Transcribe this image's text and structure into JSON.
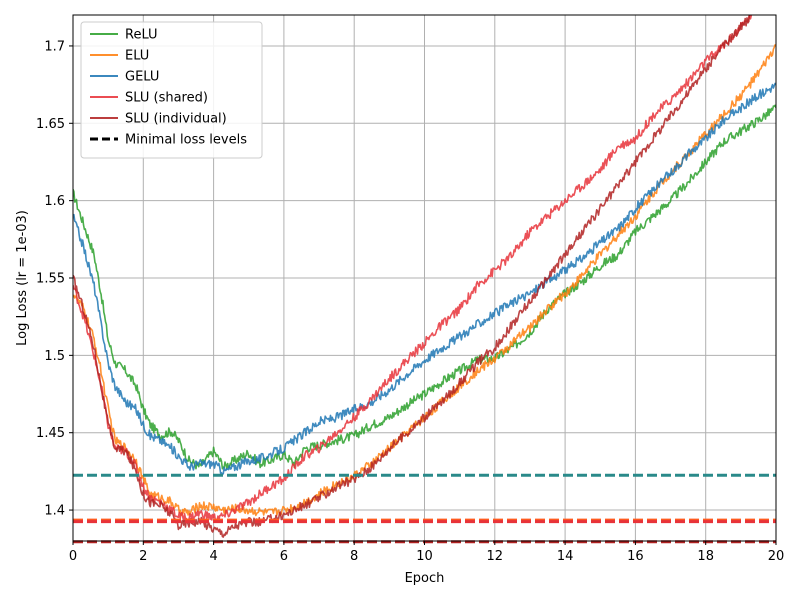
{
  "chart_data": {
    "type": "line",
    "title": "",
    "xlabel": "Epoch",
    "ylabel": "Log Loss (lr = 1e-03)",
    "xlim": [
      0,
      20
    ],
    "ylim": [
      1.38,
      1.72
    ],
    "xticks": [
      0,
      2,
      4,
      6,
      8,
      10,
      12,
      14,
      16,
      18,
      20
    ],
    "yticks": [
      1.4,
      1.45,
      1.5,
      1.55,
      1.6,
      1.65,
      1.7
    ],
    "xtick_labels": [
      "0",
      "2",
      "4",
      "6",
      "8",
      "10",
      "12",
      "14",
      "16",
      "18",
      "20"
    ],
    "ytick_labels": [
      "1.4",
      "1.45",
      "1.5",
      "1.55",
      "1.6",
      "1.65",
      "1.7"
    ],
    "grid": true,
    "legend_position": "top-left",
    "series": [
      {
        "name": "ReLU",
        "color": "#2ca02c",
        "x": [
          0,
          0.3,
          0.6,
          0.8,
          1.0,
          1.2,
          1.5,
          1.8,
          2.0,
          2.2,
          2.5,
          2.8,
          3.0,
          3.3,
          3.6,
          4.0,
          4.3,
          4.6,
          5.0,
          5.3,
          5.6,
          6.0,
          6.3,
          6.6,
          7.0,
          7.5,
          8.0,
          8.5,
          9.0,
          9.5,
          10.0,
          10.5,
          11.0,
          11.5,
          12.0,
          12.5,
          13.0,
          13.5,
          14.0,
          14.5,
          15.0,
          15.5,
          16.0,
          16.5,
          17.0,
          17.5,
          18.0,
          18.5,
          19.0,
          19.5,
          20.0
        ],
        "y": [
          1.605,
          1.585,
          1.565,
          1.54,
          1.51,
          1.495,
          1.49,
          1.48,
          1.465,
          1.455,
          1.448,
          1.451,
          1.445,
          1.432,
          1.428,
          1.438,
          1.428,
          1.432,
          1.437,
          1.43,
          1.432,
          1.436,
          1.43,
          1.44,
          1.442,
          1.445,
          1.448,
          1.455,
          1.46,
          1.468,
          1.475,
          1.483,
          1.49,
          1.497,
          1.498,
          1.505,
          1.515,
          1.53,
          1.54,
          1.548,
          1.558,
          1.565,
          1.58,
          1.59,
          1.6,
          1.612,
          1.625,
          1.638,
          1.645,
          1.652,
          1.66
        ]
      },
      {
        "name": "ELU",
        "color": "#ff7f0e",
        "x": [
          0,
          0.3,
          0.6,
          0.8,
          1.0,
          1.2,
          1.5,
          1.8,
          2.0,
          2.2,
          2.5,
          2.8,
          3.0,
          3.3,
          3.6,
          4.0,
          4.3,
          4.6,
          5.0,
          5.3,
          5.6,
          6.0,
          6.3,
          6.6,
          7.0,
          7.5,
          8.0,
          8.5,
          9.0,
          9.5,
          10.0,
          10.5,
          11.0,
          11.5,
          12.0,
          12.5,
          13.0,
          13.5,
          14.0,
          14.5,
          15.0,
          15.5,
          16.0,
          16.5,
          17.0,
          17.5,
          18.0,
          18.5,
          19.0,
          19.5,
          20.0
        ],
        "y": [
          1.54,
          1.53,
          1.51,
          1.49,
          1.465,
          1.445,
          1.44,
          1.432,
          1.42,
          1.41,
          1.408,
          1.405,
          1.4,
          1.398,
          1.403,
          1.402,
          1.4,
          1.401,
          1.4,
          1.399,
          1.398,
          1.4,
          1.402,
          1.405,
          1.41,
          1.417,
          1.422,
          1.43,
          1.44,
          1.45,
          1.46,
          1.47,
          1.48,
          1.49,
          1.498,
          1.508,
          1.518,
          1.53,
          1.54,
          1.552,
          1.565,
          1.578,
          1.59,
          1.605,
          1.618,
          1.63,
          1.643,
          1.655,
          1.668,
          1.682,
          1.7
        ]
      },
      {
        "name": "GELU",
        "color": "#1f77b4",
        "x": [
          0,
          0.3,
          0.6,
          0.8,
          1.0,
          1.2,
          1.5,
          1.8,
          2.0,
          2.2,
          2.5,
          2.8,
          3.0,
          3.3,
          3.6,
          4.0,
          4.3,
          4.6,
          5.0,
          5.3,
          5.6,
          6.0,
          6.3,
          6.6,
          7.0,
          7.5,
          8.0,
          8.5,
          9.0,
          9.5,
          10.0,
          10.5,
          11.0,
          11.5,
          12.0,
          12.5,
          13.0,
          13.5,
          14.0,
          14.5,
          15.0,
          15.5,
          16.0,
          16.5,
          17.0,
          17.5,
          18.0,
          18.5,
          19.0,
          19.5,
          20.0
        ],
        "y": [
          1.59,
          1.57,
          1.545,
          1.52,
          1.495,
          1.48,
          1.47,
          1.465,
          1.455,
          1.448,
          1.445,
          1.44,
          1.435,
          1.428,
          1.43,
          1.43,
          1.425,
          1.428,
          1.432,
          1.433,
          1.436,
          1.44,
          1.445,
          1.45,
          1.457,
          1.46,
          1.465,
          1.47,
          1.478,
          1.488,
          1.497,
          1.505,
          1.512,
          1.52,
          1.527,
          1.534,
          1.54,
          1.548,
          1.555,
          1.563,
          1.573,
          1.582,
          1.595,
          1.607,
          1.618,
          1.63,
          1.64,
          1.652,
          1.66,
          1.668,
          1.675
        ]
      },
      {
        "name": "SLU (shared)",
        "color": "#e8333a",
        "x": [
          0,
          0.3,
          0.6,
          0.8,
          1.0,
          1.2,
          1.5,
          1.8,
          2.0,
          2.2,
          2.5,
          2.8,
          3.0,
          3.3,
          3.6,
          4.0,
          4.3,
          4.6,
          5.0,
          5.3,
          5.6,
          6.0,
          6.3,
          6.6,
          7.0,
          7.5,
          8.0,
          8.5,
          9.0,
          9.5,
          10.0,
          10.5,
          11.0,
          11.5,
          12.0,
          12.5,
          13.0,
          13.5,
          14.0,
          14.5,
          15.0,
          15.5,
          16.0,
          16.5,
          17.0,
          17.5,
          18.0,
          18.5,
          19.0,
          19.3
        ],
        "y": [
          1.545,
          1.525,
          1.5,
          1.48,
          1.455,
          1.44,
          1.438,
          1.428,
          1.415,
          1.408,
          1.405,
          1.4,
          1.396,
          1.395,
          1.398,
          1.395,
          1.396,
          1.4,
          1.405,
          1.41,
          1.415,
          1.42,
          1.428,
          1.435,
          1.44,
          1.45,
          1.46,
          1.472,
          1.485,
          1.497,
          1.508,
          1.52,
          1.53,
          1.545,
          1.555,
          1.565,
          1.58,
          1.59,
          1.6,
          1.61,
          1.62,
          1.635,
          1.64,
          1.655,
          1.665,
          1.677,
          1.69,
          1.7,
          1.712,
          1.72
        ]
      },
      {
        "name": "SLU (individual)",
        "color": "#b22222",
        "x": [
          0,
          0.3,
          0.6,
          0.8,
          1.0,
          1.2,
          1.5,
          1.8,
          2.0,
          2.2,
          2.5,
          2.8,
          3.0,
          3.3,
          3.6,
          4.0,
          4.3,
          4.6,
          5.0,
          5.3,
          5.6,
          6.0,
          6.3,
          6.6,
          7.0,
          7.5,
          8.0,
          8.5,
          9.0,
          9.5,
          10.0,
          10.5,
          11.0,
          11.5,
          12.0,
          12.5,
          13.0,
          13.5,
          14.0,
          14.5,
          15.0,
          15.5,
          16.0,
          16.5,
          17.0,
          17.5,
          18.0,
          18.5,
          19.0,
          19.3
        ],
        "y": [
          1.55,
          1.53,
          1.505,
          1.48,
          1.455,
          1.44,
          1.438,
          1.425,
          1.41,
          1.405,
          1.403,
          1.397,
          1.39,
          1.392,
          1.393,
          1.388,
          1.385,
          1.39,
          1.392,
          1.392,
          1.394,
          1.397,
          1.4,
          1.403,
          1.408,
          1.415,
          1.42,
          1.428,
          1.44,
          1.45,
          1.46,
          1.47,
          1.482,
          1.495,
          1.505,
          1.52,
          1.535,
          1.55,
          1.565,
          1.58,
          1.595,
          1.61,
          1.625,
          1.64,
          1.655,
          1.67,
          1.685,
          1.7,
          1.712,
          1.72
        ]
      }
    ],
    "reference_lines": [
      {
        "y": 1.4225,
        "color": "#2a8a8a",
        "style": "dashed"
      },
      {
        "y": 1.3935,
        "color": "#ff5a1f",
        "style": "dashed"
      },
      {
        "y": 1.3925,
        "color": "#e8333a",
        "style": "dashed"
      },
      {
        "y": 1.3795,
        "color": "#b22222",
        "style": "dashed"
      }
    ],
    "legend": [
      {
        "label": "ReLU",
        "color": "#2ca02c",
        "style": "solid"
      },
      {
        "label": "ELU",
        "color": "#ff7f0e",
        "style": "solid"
      },
      {
        "label": "GELU",
        "color": "#1f77b4",
        "style": "solid"
      },
      {
        "label": "SLU (shared)",
        "color": "#e8333a",
        "style": "solid"
      },
      {
        "label": "SLU (individual)",
        "color": "#b22222",
        "style": "solid"
      },
      {
        "label": "Minimal loss levels",
        "color": "#000000",
        "style": "dashed"
      }
    ]
  }
}
